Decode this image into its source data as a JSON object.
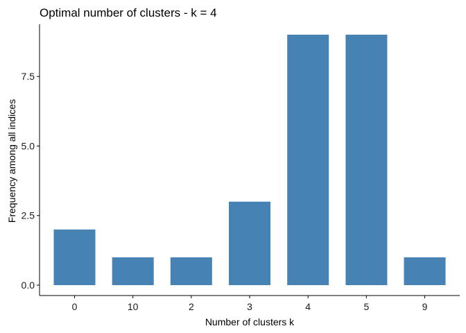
{
  "chart_data": {
    "type": "bar",
    "title": "Optimal number of clusters - k = 4",
    "xlabel": "Number of clusters k",
    "ylabel": "Frequency among all indices",
    "categories": [
      "0",
      "10",
      "2",
      "3",
      "4",
      "5",
      "9"
    ],
    "values": [
      2,
      1,
      1,
      3,
      9,
      9,
      1
    ],
    "ylim": [
      0,
      9.45
    ],
    "yticks": [
      0,
      2.5,
      5,
      7.5
    ],
    "ytick_labels": [
      "0.0",
      "2.5",
      "5.0",
      "7.5"
    ],
    "bar_color": "#4682b4",
    "grid": false,
    "legend": "none"
  }
}
